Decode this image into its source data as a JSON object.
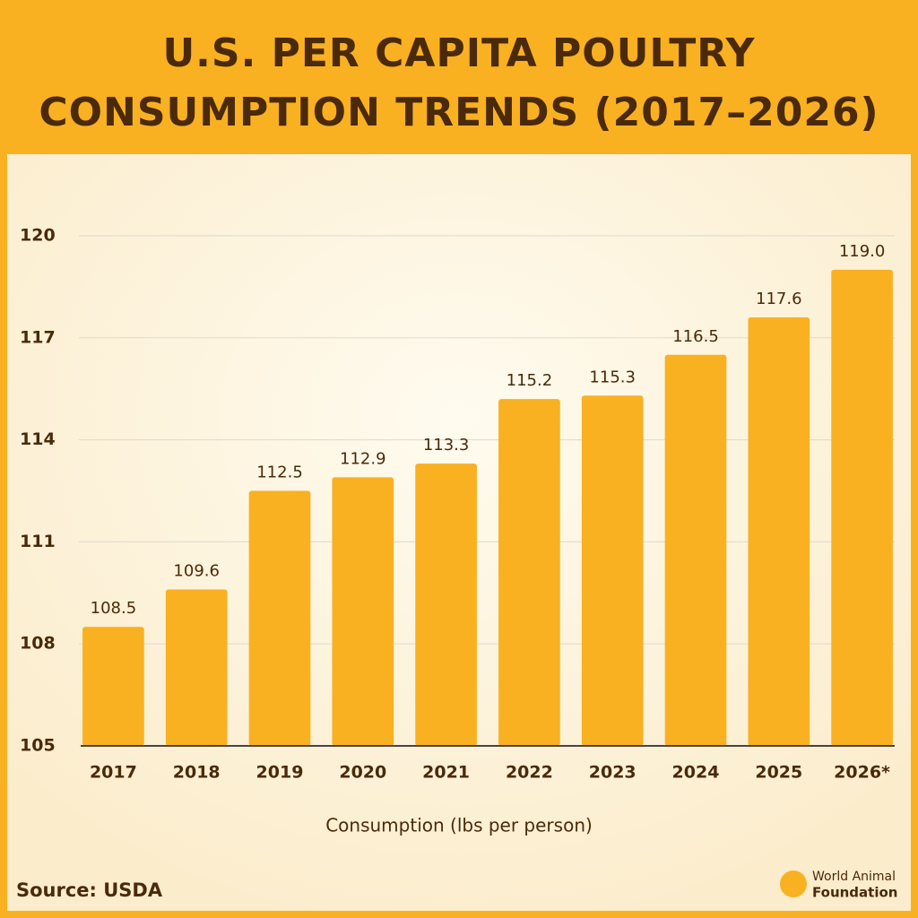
{
  "chart_data": {
    "type": "bar",
    "title": [
      "U.S. PER CAPITA POULTRY",
      "CONSUMPTION TRENDS (2017–2026)"
    ],
    "categories": [
      "2017",
      "2018",
      "2019",
      "2020",
      "2021",
      "2022",
      "2023",
      "2024",
      "2025",
      "2026*"
    ],
    "values": [
      108.5,
      109.6,
      112.5,
      112.9,
      113.3,
      115.2,
      115.3,
      116.5,
      117.6,
      119.0
    ],
    "value_labels": [
      "108.5",
      "109.6",
      "112.5",
      "112.9",
      "113.3",
      "115.2",
      "115.3",
      "116.5",
      "117.6",
      "119.0"
    ],
    "color": "#f9b122",
    "ylim": [
      105,
      120
    ],
    "yticks": [
      105,
      108,
      111,
      114,
      117,
      120
    ],
    "grid": true,
    "x_label": "Consumption (lbs per person)",
    "source": "Source: USDA",
    "brand": [
      "World Animal",
      "Foundation"
    ]
  }
}
